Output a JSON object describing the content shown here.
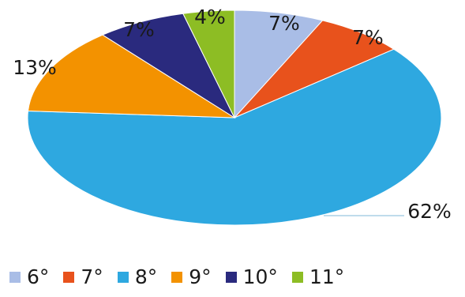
{
  "chart_data": {
    "type": "pie",
    "categories": [
      "6°",
      "7°",
      "8°",
      "9°",
      "10°",
      "11°"
    ],
    "values": [
      7,
      7,
      62,
      13,
      7,
      4
    ],
    "value_labels": [
      "7%",
      "7%",
      "62%",
      "13%",
      "7%",
      "4%"
    ],
    "colors": [
      "#a9bde6",
      "#e8521c",
      "#2ea8e0",
      "#f39200",
      "#2a2a7e",
      "#8dbd24"
    ],
    "legend_position": "bottom",
    "style": "3d-tilted"
  }
}
